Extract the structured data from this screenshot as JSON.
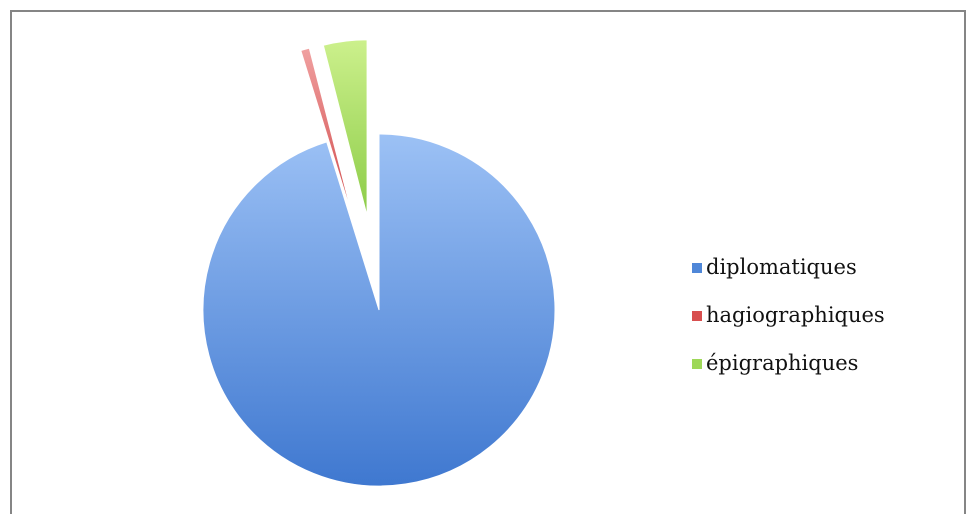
{
  "chart_data": {
    "type": "pie",
    "exploded": true,
    "legend_placement": "right",
    "slices": [
      {
        "label": "diplomatiques",
        "value": 95.2,
        "color": "#4f87d8"
      },
      {
        "label": "hagiographiques",
        "value": 0.8,
        "color": "#d84f4f"
      },
      {
        "label": "épigraphiques",
        "value": 4.0,
        "color": "#9ed858"
      }
    ]
  }
}
